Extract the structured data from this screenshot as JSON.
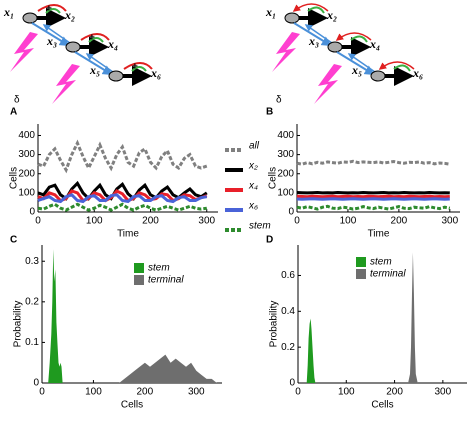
{
  "diagrams": [
    {
      "labels": [
        "x₁",
        "x₂",
        "x₃",
        "x₄",
        "x₅",
        "x₆"
      ],
      "signs": [
        "+",
        "+",
        "+"
      ],
      "delta": "δ"
    },
    {
      "labels": [
        "x₁",
        "x₂",
        "x₃",
        "x₄",
        "x₅",
        "x₆"
      ],
      "signs": [
        "+",
        "+",
        "+"
      ],
      "delta": "δ"
    }
  ],
  "chart_data": [
    {
      "type": "line",
      "panel": "A",
      "xlabel": "Time",
      "ylabel": "Cells",
      "xlim": [
        0,
        320
      ],
      "xticks": [
        0,
        100,
        200,
        300
      ],
      "ylim": [
        0,
        460
      ],
      "yticks": [
        0,
        100,
        200,
        300,
        400
      ],
      "x": [
        0,
        10,
        20,
        30,
        40,
        50,
        60,
        70,
        80,
        90,
        100,
        110,
        120,
        130,
        140,
        150,
        160,
        170,
        180,
        190,
        200,
        210,
        220,
        230,
        240,
        250,
        260,
        270,
        280,
        290,
        300
      ],
      "series": [
        {
          "name": "all",
          "color": "#808080",
          "style": "dashed",
          "values": [
            250,
            240,
            300,
            330,
            270,
            220,
            300,
            360,
            290,
            230,
            290,
            350,
            280,
            230,
            300,
            340,
            260,
            240,
            310,
            330,
            260,
            230,
            290,
            320,
            250,
            230,
            280,
            300,
            240,
            230,
            240
          ]
        },
        {
          "name": "x₂",
          "color": "#000000",
          "values": [
            100,
            90,
            130,
            140,
            90,
            70,
            120,
            150,
            100,
            70,
            110,
            140,
            90,
            70,
            120,
            145,
            95,
            70,
            115,
            140,
            90,
            75,
            110,
            130,
            90,
            75,
            100,
            120,
            90,
            80,
            100
          ]
        },
        {
          "name": "x₄",
          "color": "#e8202a",
          "values": [
            80,
            70,
            100,
            90,
            60,
            70,
            110,
            100,
            60,
            70,
            100,
            90,
            60,
            75,
            110,
            95,
            60,
            70,
            100,
            90,
            65,
            70,
            95,
            90,
            60,
            70,
            90,
            85,
            65,
            75,
            85
          ]
        },
        {
          "name": "x₆",
          "color": "#4a63d8",
          "values": [
            60,
            70,
            80,
            60,
            55,
            80,
            90,
            60,
            55,
            80,
            85,
            60,
            60,
            85,
            90,
            60,
            55,
            80,
            85,
            60,
            60,
            80,
            85,
            60,
            55,
            75,
            80,
            60,
            60,
            75,
            80
          ]
        },
        {
          "name": "stem",
          "color": "#2e8b2e",
          "style": "dashed",
          "values": [
            20,
            15,
            30,
            40,
            20,
            10,
            25,
            40,
            25,
            10,
            20,
            35,
            25,
            10,
            25,
            40,
            20,
            10,
            25,
            35,
            20,
            10,
            20,
            30,
            20,
            10,
            20,
            30,
            20,
            15,
            20
          ]
        }
      ]
    },
    {
      "type": "line",
      "panel": "B",
      "xlabel": "Time",
      "ylabel": "Cells",
      "xlim": [
        0,
        320
      ],
      "xticks": [
        0,
        100,
        200,
        300
      ],
      "ylim": [
        0,
        460
      ],
      "yticks": [
        0,
        100,
        200,
        300,
        400
      ],
      "x": [
        0,
        10,
        20,
        30,
        40,
        50,
        60,
        70,
        80,
        90,
        100,
        110,
        120,
        130,
        140,
        150,
        160,
        170,
        180,
        190,
        200,
        210,
        220,
        230,
        240,
        250,
        260,
        270,
        280,
        290,
        300
      ],
      "series": [
        {
          "color": "#808080",
          "style": "dashed",
          "values": [
            255,
            250,
            258,
            252,
            260,
            255,
            262,
            258,
            255,
            262,
            260,
            265,
            258,
            262,
            260,
            258,
            262,
            256,
            260,
            264,
            258,
            255,
            260,
            258,
            262,
            255,
            258,
            252,
            256,
            254,
            250
          ]
        },
        {
          "color": "#000000",
          "values": [
            102,
            101,
            100,
            101,
            102,
            100,
            101,
            100,
            102,
            101,
            100,
            101,
            100,
            102,
            101,
            100,
            101,
            102,
            100,
            101,
            100,
            102,
            101,
            100,
            101,
            100,
            102,
            101,
            100,
            101,
            100
          ]
        },
        {
          "color": "#e8202a",
          "values": [
            82,
            81,
            80,
            82,
            81,
            80,
            81,
            82,
            80,
            81,
            82,
            80,
            81,
            80,
            82,
            81,
            80,
            81,
            82,
            80,
            81,
            80,
            82,
            81,
            80,
            81,
            82,
            80,
            81,
            80,
            81
          ]
        },
        {
          "color": "#4a63d8",
          "values": [
            68,
            67,
            68,
            69,
            68,
            67,
            68,
            69,
            68,
            67,
            68,
            69,
            68,
            67,
            68,
            69,
            68,
            67,
            68,
            69,
            68,
            67,
            68,
            69,
            68,
            67,
            68,
            69,
            68,
            67,
            68
          ]
        },
        {
          "color": "#2e8b2e",
          "style": "dashed",
          "values": [
            25,
            20,
            28,
            22,
            15,
            25,
            30,
            20,
            18,
            25,
            22,
            15,
            20,
            28,
            22,
            18,
            25,
            20,
            15,
            22,
            28,
            20,
            18,
            25,
            22,
            20,
            28,
            22,
            18,
            25,
            20
          ]
        }
      ]
    },
    {
      "type": "area",
      "panel": "C",
      "xlabel": "Cells",
      "ylabel": "Probability",
      "xlim": [
        0,
        350
      ],
      "xticks": [
        0,
        100,
        200,
        300
      ],
      "ylim": [
        0,
        0.34
      ],
      "yticks": [
        0,
        0.1,
        0.2,
        0.3
      ],
      "series": [
        {
          "name": "stem",
          "color": "#1f9a1f",
          "x": [
            12,
            15,
            18,
            20,
            22,
            24,
            26,
            28,
            30,
            32,
            34,
            36,
            38,
            40
          ],
          "values": [
            0,
            0.05,
            0.12,
            0.2,
            0.33,
            0.25,
            0.28,
            0.15,
            0.1,
            0.05,
            0.04,
            0.05,
            0.04,
            0
          ]
        },
        {
          "name": "terminal",
          "color": "#6e6e6e",
          "x": [
            150,
            160,
            170,
            180,
            190,
            200,
            210,
            220,
            230,
            240,
            250,
            260,
            270,
            280,
            290,
            300,
            310,
            320,
            330,
            340
          ],
          "values": [
            0,
            0.01,
            0.02,
            0.03,
            0.04,
            0.05,
            0.04,
            0.05,
            0.06,
            0.07,
            0.05,
            0.06,
            0.05,
            0.04,
            0.05,
            0.03,
            0.02,
            0.01,
            0.01,
            0
          ]
        }
      ]
    },
    {
      "type": "area",
      "panel": "D",
      "xlabel": "Cells",
      "ylabel": "Probability",
      "xlim": [
        0,
        350
      ],
      "xticks": [
        0,
        100,
        200,
        300
      ],
      "ylim": [
        0,
        0.77
      ],
      "yticks": [
        0,
        0.2,
        0.4,
        0.6
      ],
      "series": [
        {
          "name": "stem",
          "color": "#1f9a1f",
          "x": [
            18,
            20,
            22,
            24,
            26,
            28,
            30,
            32,
            34,
            36
          ],
          "values": [
            0,
            0.1,
            0.25,
            0.33,
            0.36,
            0.3,
            0.2,
            0.1,
            0.03,
            0
          ]
        },
        {
          "name": "terminal",
          "color": "#6e6e6e",
          "x": [
            228,
            232,
            234,
            236,
            238,
            240,
            242,
            244,
            248
          ],
          "values": [
            0,
            0.05,
            0.2,
            0.5,
            0.73,
            0.5,
            0.2,
            0.05,
            0
          ]
        }
      ]
    }
  ]
}
